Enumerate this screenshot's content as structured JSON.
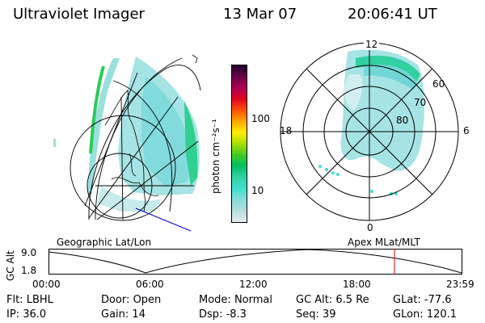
{
  "header": {
    "instrument": "Ultraviolet Imager",
    "date": "13 Mar 07",
    "time": "20:06:41 UT"
  },
  "colorbar": {
    "unit_label": "photon cm⁻²s⁻¹",
    "ticks": [
      "100",
      "10"
    ],
    "scale": "log",
    "colors": [
      "#e8eef0",
      "#b8dde0",
      "#88ddd8",
      "#40e0d0",
      "#30d0a0",
      "#00c060",
      "#44cc22",
      "#aadd00",
      "#ffee00",
      "#ffaa00",
      "#ff5500",
      "#dd0022",
      "#aa0055",
      "#660044",
      "#220033"
    ]
  },
  "polar_plot": {
    "mlt_labels": [
      "12",
      "18",
      "6",
      "0"
    ],
    "lat_labels": [
      "60",
      "70",
      "80"
    ],
    "coordinate_label": "Apex MLat/MLT"
  },
  "geo_plot": {
    "coordinate_label": "Geographic Lat/Lon"
  },
  "altitude_timeline": {
    "ylabel": "GC Alt",
    "y_ticks": [
      "9.0",
      "1.8"
    ],
    "x_ticks": [
      "00:00",
      "06:00",
      "12:00",
      "18:00",
      "23:59"
    ],
    "marker_time": "20:06",
    "marker_color": "#cc0000"
  },
  "info_rows": [
    [
      {
        "label": "Flt:",
        "value": "LBHL"
      },
      {
        "label": "Door:",
        "value": "Open"
      },
      {
        "label": "Mode:",
        "value": "Normal"
      },
      {
        "label": "GC Alt:",
        "value": "6.5 Re"
      },
      {
        "label": "GLat:",
        "value": "-77.6"
      }
    ],
    [
      {
        "label": "IP:",
        "value": "36.0"
      },
      {
        "label": "Gain:",
        "value": "14"
      },
      {
        "label": "Dsp:",
        "value": "-8.3"
      },
      {
        "label": "Seq:",
        "value": "39"
      },
      {
        "label": "GLon:",
        "value": "120.1"
      }
    ]
  ]
}
